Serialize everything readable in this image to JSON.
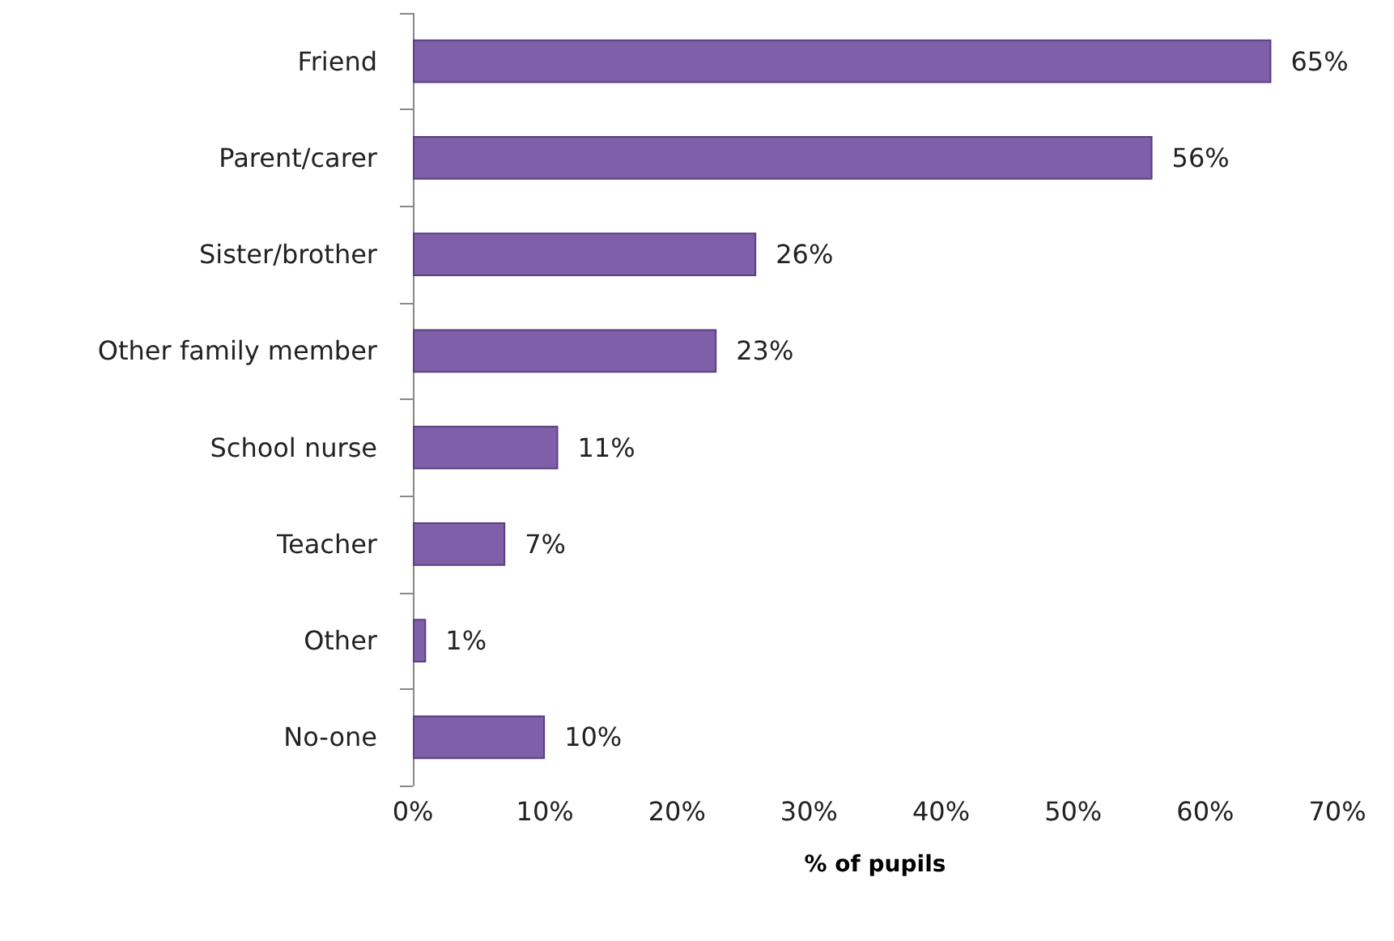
{
  "chart_data": {
    "type": "bar",
    "orientation": "horizontal",
    "xlabel": "% of pupils",
    "categories": [
      "Friend",
      "Parent/carer",
      "Sister/brother",
      "Other family member",
      "School nurse",
      "Teacher",
      "Other",
      "No-one"
    ],
    "values": [
      65,
      56,
      26,
      23,
      11,
      7,
      1,
      10
    ],
    "value_labels": [
      "65%",
      "56%",
      "26%",
      "23%",
      "11%",
      "7%",
      "1%",
      "10%"
    ],
    "color": "#7f5fa8",
    "xlim": [
      0,
      70
    ],
    "xticks": [
      {
        "value": 0,
        "label": "0%"
      },
      {
        "value": 10,
        "label": "10%"
      },
      {
        "value": 20,
        "label": "20%"
      },
      {
        "value": 30,
        "label": "30%"
      },
      {
        "value": 40,
        "label": "40%"
      },
      {
        "value": 50,
        "label": "50%"
      },
      {
        "value": 60,
        "label": "60%"
      },
      {
        "value": 70,
        "label": "70%"
      }
    ],
    "grid": false
  }
}
